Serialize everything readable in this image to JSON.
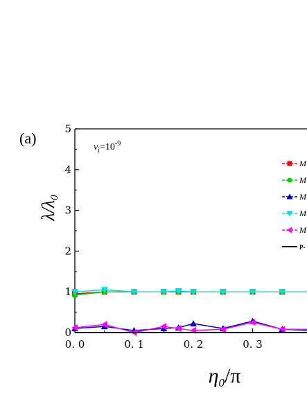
{
  "chart_data": {
    "type": "line",
    "panel_label": "(a)",
    "annotation": {
      "base": "v",
      "sub": "i",
      "mid": "=10",
      "sup": "-9"
    },
    "xlabel": {
      "main": "η",
      "sub": "0",
      "rest": "/π"
    },
    "ylabel": {
      "main": "λ/λ",
      "sub": "0"
    },
    "xlim": [
      0,
      0.4
    ],
    "ylim": [
      0,
      5
    ],
    "x_tick_values": [
      0.0,
      0.1,
      0.2,
      0.3,
      0.4
    ],
    "x_tick_labels": [
      "0. 0",
      "0. 1",
      "0. 2",
      "0. 3",
      "0."
    ],
    "y_tick_values": [
      0,
      1,
      2,
      3,
      4,
      5
    ],
    "y_tick_labels": [
      "0",
      "1",
      "2",
      "3",
      "4",
      "5"
    ],
    "series": [
      {
        "name": "M",
        "color": "#ff0000",
        "marker": "square",
        "x": [
          0.0,
          0.05,
          0.1,
          0.15,
          0.175,
          0.2,
          0.25,
          0.3,
          0.35,
          0.4
        ],
        "y": [
          0.95,
          1.0,
          1.0,
          1.0,
          1.0,
          1.0,
          1.0,
          1.0,
          1.0,
          1.0
        ]
      },
      {
        "name": "M",
        "color": "#00cc00",
        "marker": "circle",
        "x": [
          0.0,
          0.05,
          0.1,
          0.15,
          0.175,
          0.2,
          0.25,
          0.3,
          0.35,
          0.4
        ],
        "y": [
          0.92,
          1.0,
          1.0,
          1.0,
          1.0,
          1.0,
          1.0,
          1.0,
          1.0,
          1.0
        ]
      },
      {
        "name": "M",
        "color": "#0000cc",
        "marker": "triangle-up",
        "x": [
          0.0,
          0.05,
          0.1,
          0.15,
          0.175,
          0.2,
          0.25,
          0.3,
          0.35,
          0.4
        ],
        "y": [
          0.1,
          0.15,
          0.05,
          0.1,
          0.12,
          0.22,
          0.1,
          0.28,
          0.08,
          0.05
        ]
      },
      {
        "name": "M",
        "color": "#00e0e0",
        "marker": "triangle-down",
        "x": [
          0.0,
          0.05,
          0.1,
          0.15,
          0.175,
          0.2,
          0.25,
          0.3,
          0.35,
          0.4
        ],
        "y": [
          1.0,
          1.05,
          1.0,
          1.0,
          1.02,
          1.0,
          1.0,
          1.0,
          1.0,
          1.0
        ]
      },
      {
        "name": "M",
        "color": "#ff00ff",
        "marker": "triangle-left",
        "x": [
          0.0,
          0.05,
          0.1,
          0.15,
          0.175,
          0.2,
          0.25,
          0.3,
          0.35,
          0.4
        ],
        "y": [
          0.12,
          0.2,
          0.0,
          0.15,
          0.1,
          0.05,
          0.08,
          0.25,
          0.08,
          0.08
        ]
      },
      {
        "name": "P-",
        "color": "#000000",
        "marker": "none",
        "x": [
          0.0,
          0.4
        ],
        "y": [
          0.0,
          0.0
        ]
      }
    ],
    "grid": false,
    "legend_position": "top-right"
  }
}
